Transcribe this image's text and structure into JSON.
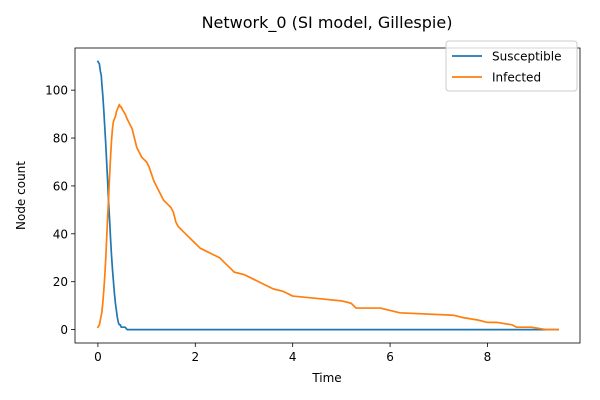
{
  "chart_data": {
    "type": "line",
    "title": "Network_0 (SI model, Gillespie)",
    "xlabel": "Time",
    "ylabel": "Node count",
    "xlim": [
      -0.47,
      9.9
    ],
    "ylim": [
      -5.6,
      117.6
    ],
    "xticks": [
      0,
      2,
      4,
      6,
      8
    ],
    "yticks": [
      0,
      20,
      40,
      60,
      80,
      100
    ],
    "grid": false,
    "legend_position": "top-right",
    "series": [
      {
        "name": "Susceptible",
        "color": "#1f77b4",
        "x": [
          0.0,
          0.03,
          0.05,
          0.07,
          0.08,
          0.1,
          0.12,
          0.14,
          0.16,
          0.18,
          0.2,
          0.22,
          0.24,
          0.26,
          0.28,
          0.3,
          0.32,
          0.34,
          0.36,
          0.38,
          0.4,
          0.42,
          0.44,
          0.46,
          0.48,
          0.5,
          0.53,
          0.56,
          0.6,
          0.64,
          0.67,
          0.7,
          9.45
        ],
        "y": [
          112,
          111,
          108,
          106,
          103,
          98,
          92,
          85,
          78,
          70,
          62,
          53,
          46,
          38,
          31,
          25,
          20,
          15,
          11,
          8,
          5,
          3,
          2,
          2,
          1,
          1,
          1,
          1,
          0,
          0,
          0,
          0,
          0
        ]
      },
      {
        "name": "Infected",
        "color": "#ff7f0e",
        "x": [
          0.0,
          0.03,
          0.05,
          0.08,
          0.1,
          0.12,
          0.14,
          0.16,
          0.18,
          0.2,
          0.22,
          0.24,
          0.26,
          0.28,
          0.3,
          0.32,
          0.34,
          0.36,
          0.38,
          0.4,
          0.42,
          0.44,
          0.46,
          0.48,
          0.5,
          0.53,
          0.56,
          0.6,
          0.65,
          0.7,
          0.75,
          0.8,
          0.85,
          0.9,
          1.0,
          1.05,
          1.1,
          1.15,
          1.2,
          1.25,
          1.3,
          1.35,
          1.4,
          1.45,
          1.5,
          1.55,
          1.6,
          1.65,
          1.7,
          1.75,
          1.8,
          1.9,
          2.0,
          2.1,
          2.2,
          2.3,
          2.4,
          2.5,
          2.6,
          2.7,
          2.8,
          3.0,
          3.2,
          3.4,
          3.6,
          3.8,
          4.0,
          4.5,
          5.0,
          5.2,
          5.3,
          5.5,
          5.8,
          6.0,
          6.2,
          7.3,
          7.5,
          7.8,
          8.0,
          8.2,
          8.5,
          8.6,
          8.9,
          9.2,
          9.45
        ],
        "y": [
          1,
          2,
          4,
          7,
          11,
          16,
          22,
          29,
          38,
          47,
          55,
          64,
          72,
          79,
          84,
          87,
          88,
          89,
          91,
          92,
          93,
          94,
          93,
          93,
          92,
          91,
          90,
          88,
          86,
          84,
          80,
          76,
          74,
          72,
          70,
          68,
          65,
          62,
          60,
          58,
          56,
          54,
          53,
          52,
          51,
          49,
          45,
          43,
          42,
          41,
          40,
          38,
          36,
          34,
          33,
          32,
          31,
          30,
          28,
          26,
          24,
          23,
          21,
          19,
          17,
          16,
          14,
          13,
          12,
          11,
          9,
          9,
          9,
          8,
          7,
          6,
          5,
          4,
          3,
          3,
          2,
          1,
          1,
          0,
          0
        ]
      }
    ]
  }
}
